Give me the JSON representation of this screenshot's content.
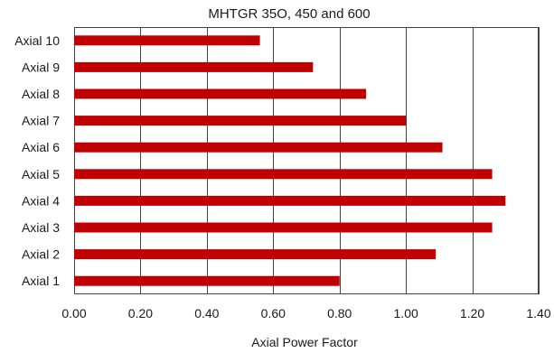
{
  "chart_data": {
    "type": "bar",
    "orientation": "horizontal",
    "title": "MHTGR 35O, 450 and 600",
    "xlabel": "Axial Power Factor",
    "ylabel": "",
    "categories": [
      "Axial 1",
      "Axial 2",
      "Axial 3",
      "Axial 4",
      "Axial 5",
      "Axial 6",
      "Axial 7",
      "Axial 8",
      "Axial 9",
      "Axial 10"
    ],
    "values": [
      0.8,
      1.09,
      1.26,
      1.3,
      1.26,
      1.11,
      1.0,
      0.88,
      0.72,
      0.56
    ],
    "xlim": [
      0,
      1.4
    ],
    "xticks": [
      "0.00",
      "0.20",
      "0.40",
      "0.60",
      "0.80",
      "1.00",
      "1.20",
      "1.40"
    ],
    "xtick_values": [
      0,
      0.2,
      0.4,
      0.6,
      0.8,
      1.0,
      1.2,
      1.4
    ],
    "grid": "vertical",
    "legend": "none",
    "bar_color": "#c00000"
  }
}
